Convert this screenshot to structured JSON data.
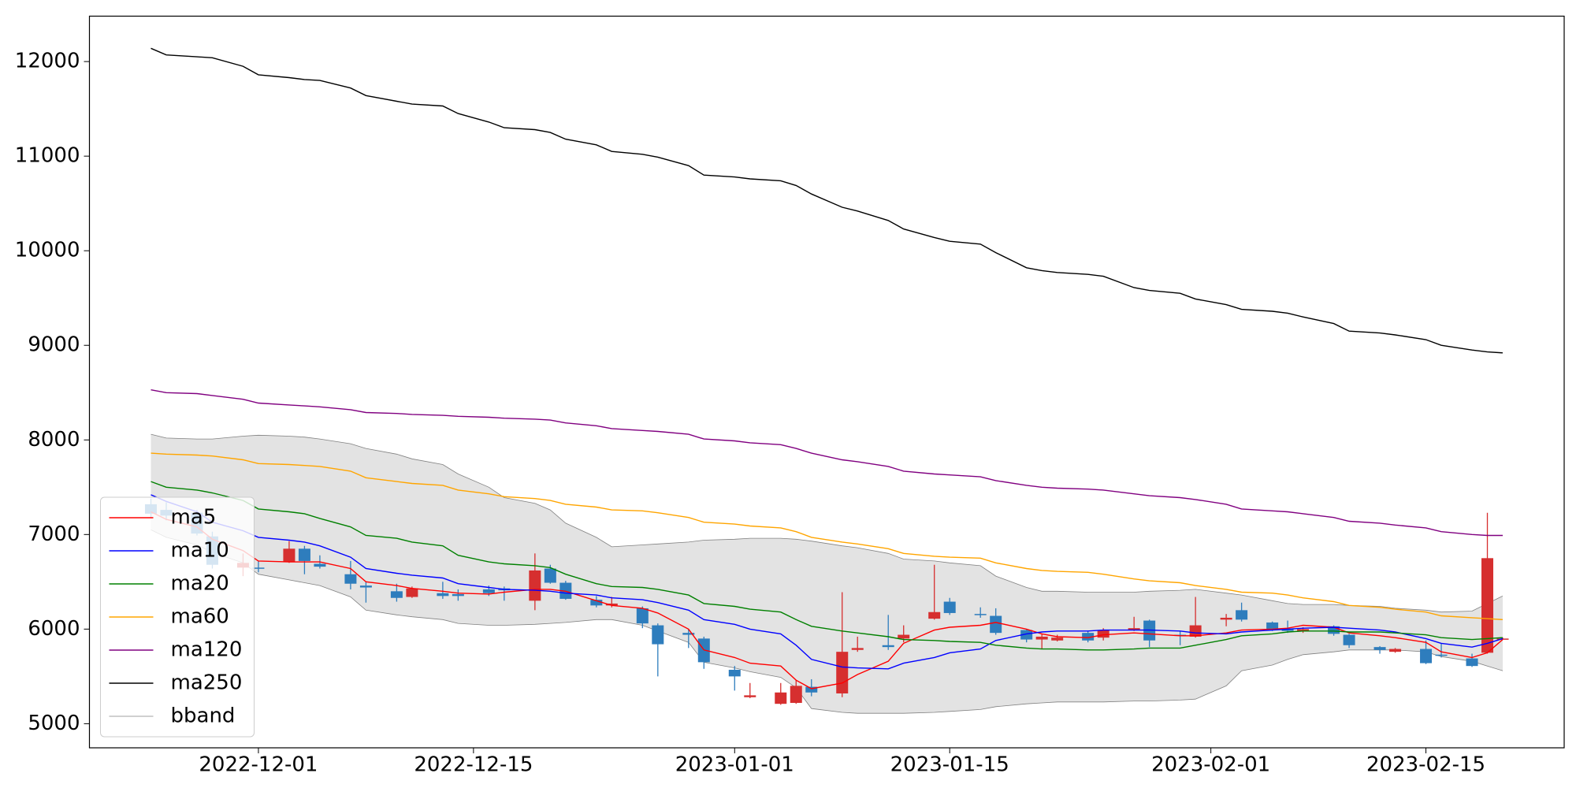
{
  "chart_data": {
    "type": "candlestick",
    "x": [
      "2022-11-24",
      "2022-11-25",
      "2022-11-27",
      "2022-11-28",
      "2022-11-30",
      "2022-12-01",
      "2022-12-03",
      "2022-12-04",
      "2022-12-05",
      "2022-12-07",
      "2022-12-08",
      "2022-12-10",
      "2022-12-11",
      "2022-12-13",
      "2022-12-14",
      "2022-12-16",
      "2022-12-17",
      "2022-12-19",
      "2022-12-20",
      "2022-12-21",
      "2022-12-23",
      "2022-12-24",
      "2022-12-26",
      "2022-12-27",
      "2022-12-29",
      "2022-12-30",
      "2023-01-01",
      "2023-01-02",
      "2023-01-04",
      "2023-01-05",
      "2023-01-06",
      "2023-01-08",
      "2023-01-09",
      "2023-01-11",
      "2023-01-12",
      "2023-01-14",
      "2023-01-15",
      "2023-01-17",
      "2023-01-18",
      "2023-01-20",
      "2023-01-21",
      "2023-01-22",
      "2023-01-24",
      "2023-01-25",
      "2023-01-27",
      "2023-01-28",
      "2023-01-30",
      "2023-01-31",
      "2023-02-02",
      "2023-02-03",
      "2023-02-05",
      "2023-02-06",
      "2023-02-07",
      "2023-02-09",
      "2023-02-10",
      "2023-02-12",
      "2023-02-13",
      "2023-02-15",
      "2023-02-16",
      "2023-02-18",
      "2023-02-19",
      "2023-02-20"
    ],
    "open": [
      7320,
      7260,
      7230,
      6980,
      6650,
      6650,
      6710,
      6850,
      6690,
      6580,
      6460,
      6400,
      6340,
      6380,
      6370,
      6420,
      6430,
      6300,
      6640,
      6490,
      6310,
      6250,
      6220,
      6040,
      5960,
      5900,
      5570,
      5280,
      5210,
      5220,
      5390,
      5320,
      5780,
      5830,
      5900,
      6110,
      6290,
      6160,
      6140,
      5990,
      5890,
      5880,
      5960,
      5910,
      5990,
      6090,
      5940,
      5920,
      6100,
      6200,
      6070,
      6000,
      5980,
      6030,
      5940,
      5810,
      5760,
      5790,
      5730,
      5690,
      5750,
      5900
    ],
    "high": [
      7380,
      7340,
      7260,
      7030,
      6800,
      6720,
      6930,
      6880,
      6780,
      6720,
      6500,
      6480,
      6450,
      6500,
      6420,
      6460,
      6450,
      6800,
      6680,
      6510,
      6350,
      6340,
      6240,
      6060,
      6000,
      5920,
      5610,
      5430,
      5430,
      5460,
      5470,
      6390,
      5920,
      6150,
      6040,
      6680,
      6330,
      6230,
      6220,
      6000,
      5950,
      5940,
      5980,
      6010,
      6130,
      6100,
      5980,
      6340,
      6160,
      6280,
      6080,
      6090,
      6020,
      6040,
      5950,
      5820,
      5800,
      5880,
      5850,
      5740,
      7230,
      5910
    ],
    "low": [
      7180,
      7150,
      6990,
      6640,
      6560,
      6600,
      6700,
      6580,
      6640,
      6420,
      6280,
      6290,
      6330,
      6320,
      6300,
      6350,
      6300,
      6200,
      6480,
      6310,
      6230,
      6230,
      6010,
      5500,
      5800,
      5580,
      5350,
      5270,
      5200,
      5210,
      5290,
      5280,
      5760,
      5780,
      5860,
      6100,
      6150,
      6120,
      5940,
      5860,
      5790,
      5870,
      5860,
      5880,
      5980,
      5810,
      5830,
      5910,
      6030,
      6080,
      5980,
      5960,
      5960,
      5930,
      5800,
      5740,
      5750,
      5630,
      5700,
      5600,
      5740,
      5890
    ],
    "close": [
      7220,
      7200,
      7010,
      6680,
      6700,
      6640,
      6850,
      6720,
      6660,
      6480,
      6440,
      6330,
      6430,
      6350,
      6350,
      6380,
      6410,
      6620,
      6490,
      6320,
      6250,
      6270,
      6060,
      5840,
      5940,
      5650,
      5500,
      5300,
      5330,
      5400,
      5330,
      5760,
      5800,
      5810,
      5940,
      6180,
      6170,
      6150,
      5960,
      5890,
      5920,
      5910,
      5880,
      5990,
      6010,
      5880,
      5930,
      6040,
      6120,
      6100,
      5990,
      5980,
      6000,
      5950,
      5830,
      5780,
      5790,
      5640,
      5720,
      5610,
      6750,
      5900
    ],
    "up_color": "#d62f2f",
    "down_color": "#2e7dbd",
    "series": [
      {
        "name": "ma5",
        "color": "#ff0000",
        "values": [
          7240,
          7160,
          7080,
          6950,
          6830,
          6720,
          6710,
          6710,
          6710,
          6640,
          6500,
          6460,
          6430,
          6400,
          6380,
          6370,
          6390,
          6420,
          6420,
          6400,
          6300,
          6250,
          6220,
          6170,
          6000,
          5780,
          5700,
          5640,
          5610,
          5460,
          5370,
          5430,
          5520,
          5660,
          5850,
          5990,
          6020,
          6040,
          6070,
          6000,
          5950,
          5920,
          5910,
          5940,
          5960,
          5950,
          5930,
          5930,
          5960,
          5990,
          6000,
          6010,
          6040,
          6020,
          5960,
          5930,
          5910,
          5860,
          5760,
          5700,
          5750,
          5890
        ]
      },
      {
        "name": "ma10",
        "color": "#0000ff",
        "values": [
          7420,
          7350,
          7240,
          7130,
          7040,
          6970,
          6940,
          6920,
          6880,
          6760,
          6640,
          6590,
          6570,
          6540,
          6480,
          6440,
          6420,
          6410,
          6400,
          6380,
          6360,
          6330,
          6310,
          6280,
          6200,
          6100,
          6050,
          6000,
          5950,
          5830,
          5680,
          5600,
          5590,
          5580,
          5640,
          5700,
          5750,
          5790,
          5880,
          5950,
          5970,
          5980,
          5980,
          5990,
          5990,
          5990,
          5980,
          5960,
          5950,
          5970,
          5990,
          6000,
          6010,
          6020,
          6010,
          5990,
          5970,
          5900,
          5850,
          5810,
          5850,
          5900
        ]
      },
      {
        "name": "ma20",
        "color": "#008000",
        "values": [
          7560,
          7500,
          7470,
          7440,
          7360,
          7270,
          7240,
          7220,
          7170,
          7080,
          6990,
          6960,
          6920,
          6880,
          6780,
          6710,
          6690,
          6670,
          6650,
          6580,
          6480,
          6450,
          6440,
          6420,
          6360,
          6270,
          6240,
          6210,
          6180,
          6100,
          6030,
          5980,
          5960,
          5920,
          5890,
          5880,
          5870,
          5860,
          5830,
          5800,
          5790,
          5790,
          5780,
          5780,
          5790,
          5800,
          5800,
          5830,
          5890,
          5930,
          5950,
          5970,
          5980,
          5980,
          5970,
          5970,
          5960,
          5940,
          5910,
          5890,
          5900,
          5910
        ]
      },
      {
        "name": "ma60",
        "color": "#ffa500",
        "values": [
          7860,
          7850,
          7840,
          7830,
          7790,
          7750,
          7740,
          7730,
          7720,
          7670,
          7600,
          7560,
          7540,
          7520,
          7470,
          7430,
          7400,
          7380,
          7360,
          7320,
          7290,
          7260,
          7250,
          7230,
          7180,
          7130,
          7110,
          7090,
          7070,
          7030,
          6970,
          6920,
          6900,
          6850,
          6800,
          6770,
          6760,
          6750,
          6700,
          6640,
          6620,
          6610,
          6600,
          6580,
          6530,
          6510,
          6490,
          6460,
          6420,
          6390,
          6380,
          6360,
          6330,
          6290,
          6250,
          6230,
          6210,
          6180,
          6140,
          6120,
          6110,
          6100
        ]
      },
      {
        "name": "ma120",
        "color": "#800080",
        "values": [
          8530,
          8500,
          8490,
          8470,
          8430,
          8390,
          8370,
          8360,
          8350,
          8320,
          8290,
          8280,
          8270,
          8260,
          8250,
          8240,
          8230,
          8220,
          8210,
          8180,
          8150,
          8120,
          8100,
          8090,
          8060,
          8010,
          7990,
          7970,
          7950,
          7910,
          7860,
          7790,
          7770,
          7720,
          7670,
          7640,
          7630,
          7610,
          7570,
          7520,
          7500,
          7490,
          7480,
          7470,
          7430,
          7410,
          7390,
          7370,
          7320,
          7270,
          7250,
          7240,
          7220,
          7180,
          7140,
          7120,
          7100,
          7070,
          7030,
          7000,
          6990,
          6990
        ]
      },
      {
        "name": "ma250",
        "color": "#000000",
        "values": [
          12140,
          12070,
          12050,
          12040,
          11950,
          11860,
          11830,
          11810,
          11800,
          11720,
          11640,
          11580,
          11550,
          11530,
          11450,
          11360,
          11300,
          11280,
          11250,
          11180,
          11120,
          11050,
          11020,
          10990,
          10900,
          10800,
          10780,
          10760,
          10740,
          10690,
          10600,
          10460,
          10420,
          10320,
          10230,
          10140,
          10100,
          10070,
          9980,
          9820,
          9790,
          9770,
          9750,
          9730,
          9610,
          9580,
          9550,
          9490,
          9430,
          9380,
          9360,
          9340,
          9300,
          9230,
          9150,
          9130,
          9110,
          9060,
          9000,
          8950,
          8930,
          8920
        ]
      },
      {
        "name": "bband",
        "color": "#808080",
        "fill": "#e3e3e3",
        "upper": [
          8060,
          8020,
          8010,
          8010,
          8040,
          8050,
          8040,
          8030,
          8010,
          7960,
          7910,
          7850,
          7800,
          7740,
          7640,
          7500,
          7390,
          7330,
          7260,
          7120,
          6970,
          6870,
          6890,
          6900,
          6920,
          6940,
          6950,
          6960,
          6960,
          6950,
          6930,
          6880,
          6860,
          6800,
          6740,
          6720,
          6700,
          6670,
          6560,
          6440,
          6400,
          6400,
          6390,
          6390,
          6390,
          6400,
          6410,
          6420,
          6380,
          6360,
          6300,
          6270,
          6260,
          6260,
          6250,
          6240,
          6220,
          6200,
          6180,
          6190,
          6270,
          6350
        ],
        "lower": [
          7050,
          6970,
          6890,
          6810,
          6700,
          6580,
          6520,
          6490,
          6460,
          6340,
          6200,
          6150,
          6130,
          6100,
          6060,
          6040,
          6040,
          6050,
          6060,
          6070,
          6100,
          6100,
          6040,
          5980,
          5860,
          5650,
          5590,
          5550,
          5490,
          5380,
          5160,
          5120,
          5110,
          5110,
          5110,
          5120,
          5130,
          5150,
          5180,
          5210,
          5220,
          5230,
          5230,
          5230,
          5240,
          5240,
          5250,
          5260,
          5400,
          5560,
          5620,
          5680,
          5730,
          5760,
          5780,
          5780,
          5780,
          5760,
          5710,
          5660,
          5610,
          5560
        ]
      }
    ],
    "xlim": [
      "2022-11-20",
      "2023-02-24"
    ],
    "xticks": [
      "2022-12-01",
      "2022-12-15",
      "2023-01-01",
      "2023-01-15",
      "2023-02-01",
      "2023-02-15"
    ],
    "ylim": [
      4745,
      12480
    ],
    "yticks": [
      5000,
      6000,
      7000,
      8000,
      9000,
      10000,
      11000,
      12000
    ],
    "grid": false,
    "legend": "lower left"
  }
}
